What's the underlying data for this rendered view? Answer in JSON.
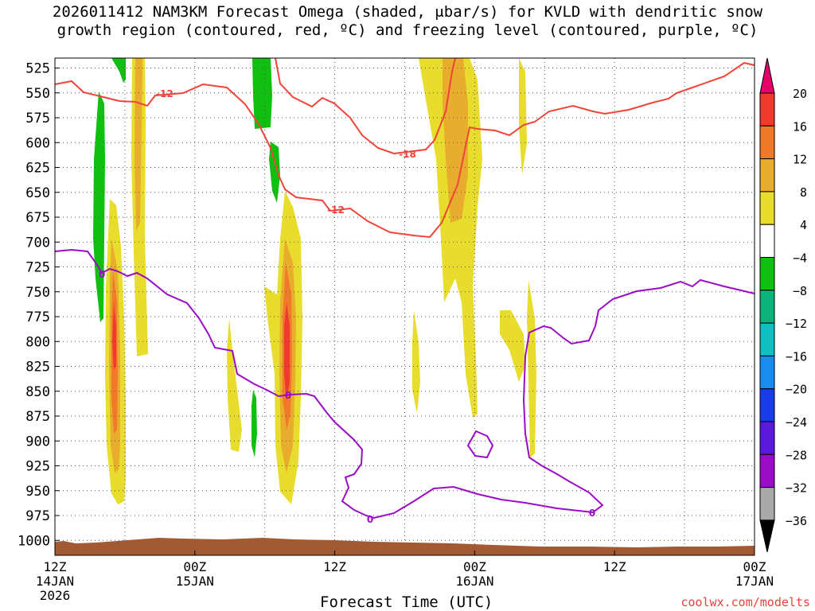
{
  "title": {
    "line1": "2026011412 NAM3KM Forecast Omega (shaded, μbar/s) for KVLD with dendritic snow",
    "line2": "growth region (contoured, red, ºC) and freezing level (contoured, purple, ºC)"
  },
  "chart_data": {
    "type": "heatmap",
    "xlabel": "Forecast Time (UTC)",
    "x_ticks": [
      {
        "line1": "12Z",
        "line2": "14JAN",
        "line3": "2026"
      },
      {
        "line1": "00Z",
        "line2": "15JAN",
        "line3": ""
      },
      {
        "line1": "12Z",
        "line2": "",
        "line3": ""
      },
      {
        "line1": "00Z",
        "line2": "16JAN",
        "line3": ""
      },
      {
        "line1": "12Z",
        "line2": "",
        "line3": ""
      },
      {
        "line1": "00Z",
        "line2": "17JAN",
        "line3": ""
      }
    ],
    "x_range_hours": [
      0,
      60
    ],
    "y_ticks": [
      "525",
      "550",
      "575",
      "600",
      "625",
      "650",
      "675",
      "700",
      "725",
      "750",
      "775",
      "800",
      "825",
      "850",
      "875",
      "900",
      "925",
      "950",
      "975",
      "1000"
    ],
    "y_range_mb": [
      515,
      1015
    ],
    "colorbar": {
      "labels": [
        "20",
        "16",
        "12",
        "8",
        "4",
        "−4",
        "−8",
        "−12",
        "−16",
        "−20",
        "−24",
        "−28",
        "−32",
        "−36"
      ],
      "colors": [
        "#e8006a",
        "#f03a2e",
        "#f07a28",
        "#e8ad2c",
        "#e8dc2c",
        "#ffffff",
        "#10c010",
        "#0bb27a",
        "#10c0c0",
        "#1a8cf0",
        "#1a3ce8",
        "#5a1adc",
        "#9a0cc8",
        "#a9a9a9",
        "#000000"
      ]
    },
    "contour_labels": {
      "red_top": "-12",
      "red_mid": "-18",
      "red_low": "-12",
      "purple": "0"
    },
    "credit": "coolwx.com/modelts"
  }
}
